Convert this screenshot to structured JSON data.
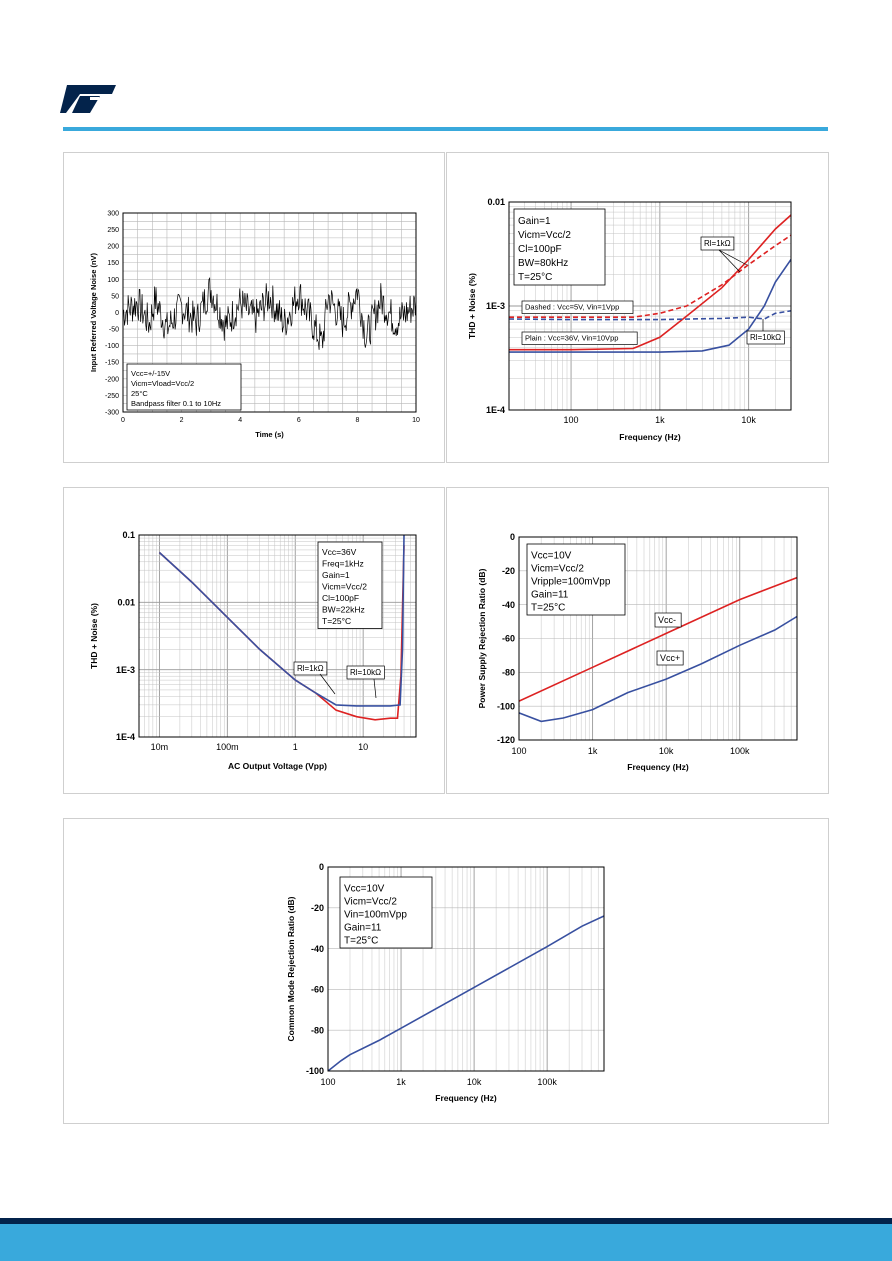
{
  "brand": {
    "logo": "ST",
    "accent_color": "#39a9dc",
    "footer_dark_color": "#03234b"
  },
  "chart_data": [
    {
      "id": "noise",
      "type": "line",
      "xlabel": "Time (s)",
      "ylabel": "Input Referred Voltage Noise (nV)",
      "xlim": [
        0,
        10
      ],
      "ylim": [
        -300,
        300
      ],
      "x_ticks": [
        "0",
        "2",
        "4",
        "6",
        "8",
        "10"
      ],
      "y_ticks": [
        "300",
        "250",
        "200",
        "150",
        "100",
        "50",
        "0",
        "-50",
        "-100",
        "-150",
        "-200",
        "-250",
        "-300"
      ],
      "annotation": [
        "Vcc=+/-15V",
        "Vicm=Vload=Vcc/2",
        "25°C",
        "Bandpass filter 0.1 to 10Hz"
      ],
      "series": [
        {
          "color": "#000000",
          "samples": 400,
          "points": [
            [
              0,
              0
            ],
            [
              0.5,
              60
            ],
            [
              0.9,
              -70
            ],
            [
              1.1,
              80
            ],
            [
              1.5,
              -100
            ],
            [
              2.0,
              40
            ],
            [
              2.5,
              -60
            ],
            [
              2.9,
              120
            ],
            [
              3.0,
              140
            ],
            [
              3.5,
              -80
            ],
            [
              4.0,
              60
            ],
            [
              4.5,
              -40
            ],
            [
              5.0,
              100
            ],
            [
              5.5,
              -70
            ],
            [
              6.0,
              120
            ],
            [
              6.5,
              -80
            ],
            [
              6.8,
              -190
            ],
            [
              7.0,
              100
            ],
            [
              7.5,
              -60
            ],
            [
              8.0,
              140
            ],
            [
              8.3,
              -150
            ],
            [
              8.8,
              80
            ],
            [
              9.3,
              -60
            ],
            [
              9.8,
              20
            ]
          ]
        }
      ]
    },
    {
      "id": "thd-freq",
      "type": "line",
      "xlabel": "Frequency (Hz)",
      "ylabel": "THD + Noise (%)",
      "x_scale": "log",
      "y_scale": "log",
      "xlim": [
        20,
        30000
      ],
      "ylim": [
        0.0001,
        0.01
      ],
      "x_ticks": [
        "100",
        "1k",
        "10k"
      ],
      "y_ticks": [
        "0.01",
        "1E-3",
        "1E-4"
      ],
      "annotation": [
        "Gain=1",
        "Vicm=Vcc/2",
        "Cl=100pF",
        "BW=80kHz",
        "T=25°C"
      ],
      "labels": [
        "Dashed : Vcc=5V, Vin=1Vpp",
        "Plain : Vcc=36V, Vin=10Vpp",
        "Rl=1kΩ",
        "Rl=10kΩ"
      ],
      "series": [
        {
          "color": "#dd2222",
          "dash": false,
          "points": [
            [
              20,
              0.00038
            ],
            [
              100,
              0.00038
            ],
            [
              500,
              0.00039
            ],
            [
              1000,
              0.0005
            ],
            [
              2000,
              0.0008
            ],
            [
              5000,
              0.0015
            ],
            [
              10000,
              0.0028
            ],
            [
              20000,
              0.0055
            ],
            [
              30000,
              0.0075
            ]
          ]
        },
        {
          "color": "#dd2222",
          "dash": true,
          "points": [
            [
              20,
              0.00078
            ],
            [
              100,
              0.00078
            ],
            [
              500,
              0.00078
            ],
            [
              1000,
              0.00085
            ],
            [
              2000,
              0.001
            ],
            [
              5000,
              0.0016
            ],
            [
              10000,
              0.0025
            ],
            [
              20000,
              0.0038
            ],
            [
              30000,
              0.0048
            ]
          ]
        },
        {
          "color": "#3850a0",
          "dash": false,
          "points": [
            [
              20,
              0.00036
            ],
            [
              100,
              0.00036
            ],
            [
              1000,
              0.00036
            ],
            [
              3000,
              0.00037
            ],
            [
              6000,
              0.00042
            ],
            [
              10000,
              0.0006
            ],
            [
              15000,
              0.001
            ],
            [
              20000,
              0.0017
            ],
            [
              30000,
              0.0028
            ]
          ]
        },
        {
          "color": "#3850a0",
          "dash": true,
          "points": [
            [
              20,
              0.00075
            ],
            [
              100,
              0.00074
            ],
            [
              1000,
              0.00074
            ],
            [
              5000,
              0.00076
            ],
            [
              10000,
              0.00078
            ],
            [
              15000,
              0.00075
            ],
            [
              20000,
              0.00085
            ],
            [
              30000,
              0.0009
            ]
          ]
        }
      ]
    },
    {
      "id": "thd-vout",
      "type": "line",
      "xlabel": "AC Output Voltage (Vpp)",
      "ylabel": "THD + Noise (%)",
      "x_scale": "log",
      "y_scale": "log",
      "xlim": [
        0.005,
        60
      ],
      "ylim": [
        0.0001,
        0.1
      ],
      "x_ticks": [
        "10m",
        "100m",
        "1",
        "10"
      ],
      "y_ticks": [
        "0.1",
        "0.01",
        "1E-3",
        "1E-4"
      ],
      "annotation": [
        "Vcc=36V",
        "Freq=1kHz",
        "Gain=1",
        "Vicm=Vcc/2",
        "Cl=100pF",
        "BW=22kHz",
        "T=25°C"
      ],
      "labels": [
        "Rl=1kΩ",
        "Rl=10kΩ"
      ],
      "series": [
        {
          "color": "#dd2222",
          "points": [
            [
              0.01,
              0.055
            ],
            [
              0.03,
              0.02
            ],
            [
              0.1,
              0.006
            ],
            [
              0.3,
              0.002
            ],
            [
              1,
              0.0007
            ],
            [
              2,
              0.00045
            ],
            [
              4,
              0.00025
            ],
            [
              8,
              0.0002
            ],
            [
              15,
              0.00018
            ],
            [
              25,
              0.00019
            ],
            [
              32,
              0.00019
            ],
            [
              36,
              0.0008
            ],
            [
              40,
              0.07
            ]
          ]
        },
        {
          "color": "#3850a0",
          "points": [
            [
              0.01,
              0.055
            ],
            [
              0.03,
              0.02
            ],
            [
              0.1,
              0.006
            ],
            [
              0.3,
              0.002
            ],
            [
              1,
              0.0007
            ],
            [
              2,
              0.00045
            ],
            [
              4,
              0.0003
            ],
            [
              8,
              0.00029
            ],
            [
              15,
              0.00029
            ],
            [
              25,
              0.00029
            ],
            [
              35,
              0.0003
            ],
            [
              38,
              0.002
            ],
            [
              40,
              0.1
            ]
          ]
        }
      ]
    },
    {
      "id": "psrr",
      "type": "line",
      "xlabel": "Frequency (Hz)",
      "ylabel": "Power Supply Rejection Ratio (dB)",
      "x_scale": "log",
      "xlim": [
        100,
        600000
      ],
      "ylim": [
        -120,
        0
      ],
      "x_ticks": [
        "100",
        "1k",
        "10k",
        "100k"
      ],
      "y_ticks": [
        "0",
        "-20",
        "-40",
        "-60",
        "-80",
        "-100",
        "-120"
      ],
      "annotation": [
        "Vcc=10V",
        "Vicm=Vcc/2",
        "Vripple=100mVpp",
        "Gain=11",
        "T=25°C"
      ],
      "labels": [
        "Vcc-",
        "Vcc+"
      ],
      "series": [
        {
          "name": "Vcc-",
          "color": "#dd2222",
          "points": [
            [
              100,
              -97
            ],
            [
              1000,
              -77
            ],
            [
              10000,
              -57
            ],
            [
              100000,
              -37
            ],
            [
              600000,
              -24
            ]
          ]
        },
        {
          "name": "Vcc+",
          "color": "#3850a0",
          "points": [
            [
              100,
              -104
            ],
            [
              200,
              -109
            ],
            [
              400,
              -107
            ],
            [
              1000,
              -102
            ],
            [
              3000,
              -92
            ],
            [
              10000,
              -84
            ],
            [
              30000,
              -75
            ],
            [
              100000,
              -64
            ],
            [
              300000,
              -55
            ],
            [
              600000,
              -47
            ]
          ]
        }
      ]
    },
    {
      "id": "cmrr",
      "type": "line",
      "xlabel": "Frequency (Hz)",
      "ylabel": "Common Mode Rejection Ratio (dB)",
      "x_scale": "log",
      "xlim": [
        100,
        600000
      ],
      "ylim": [
        -100,
        0
      ],
      "x_ticks": [
        "100",
        "1k",
        "10k",
        "100k"
      ],
      "y_ticks": [
        "0",
        "-20",
        "-40",
        "-60",
        "-80",
        "-100"
      ],
      "annotation": [
        "Vcc=10V",
        "Vicm=Vcc/2",
        "Vin=100mVpp",
        "Gain=11",
        "T=25°C"
      ],
      "series": [
        {
          "color": "#3850a0",
          "points": [
            [
              100,
              -100
            ],
            [
              150,
              -95
            ],
            [
              200,
              -92
            ],
            [
              500,
              -85
            ],
            [
              1000,
              -79
            ],
            [
              10000,
              -59
            ],
            [
              100000,
              -39
            ],
            [
              300000,
              -29
            ],
            [
              600000,
              -24
            ]
          ]
        }
      ]
    }
  ]
}
